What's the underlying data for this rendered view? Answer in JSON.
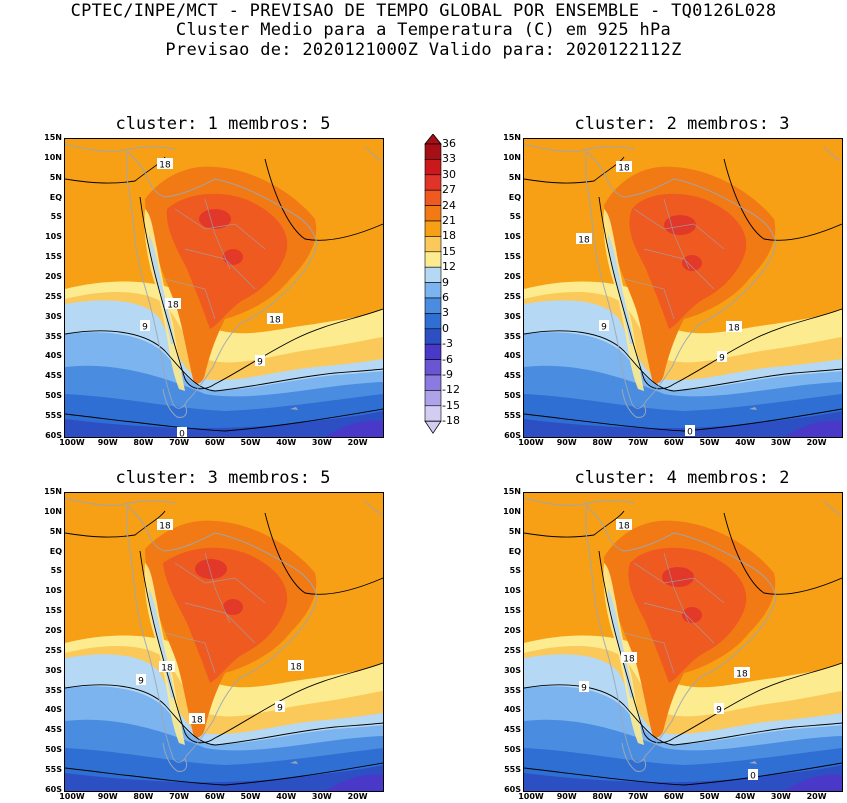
{
  "header": {
    "line1": "CPTEC/INPE/MCT - PREVISAO DE TEMPO GLOBAL POR ENSEMBLE - TQ0126L028",
    "line2": "Cluster Medio para a Temperatura (C) em 925 hPa",
    "line3": "Previsao de: 2020121000Z   Valido para: 2020122112Z"
  },
  "panels": [
    {
      "title": "cluster: 1  membros: 5"
    },
    {
      "title": "cluster: 2  membros: 3"
    },
    {
      "title": "cluster: 3  membros: 5"
    },
    {
      "title": "cluster: 4  membros: 2"
    }
  ],
  "axes": {
    "lat_labels": [
      "15N",
      "10N",
      "5N",
      "EQ",
      "5S",
      "10S",
      "15S",
      "20S",
      "25S",
      "30S",
      "35S",
      "40S",
      "45S",
      "50S",
      "55S",
      "60S"
    ],
    "lon_labels": [
      "100W",
      "90W",
      "80W",
      "70W",
      "60W",
      "50W",
      "40W",
      "30W",
      "20W"
    ]
  },
  "contour_labels": {
    "p1": [
      "18",
      "18",
      "18",
      "9",
      "9",
      "0"
    ],
    "p2": [
      "18",
      "18",
      "18",
      "9",
      "9",
      "0"
    ],
    "p3": [
      "18",
      "18",
      "18",
      "18",
      "9",
      "9"
    ],
    "p4": [
      "18",
      "18",
      "18",
      "9",
      "9",
      "0"
    ]
  },
  "colorbar": {
    "labels": [
      "36",
      "33",
      "30",
      "27",
      "24",
      "21",
      "18",
      "15",
      "12",
      "9",
      "6",
      "3",
      "0",
      "-3",
      "-6",
      "-9",
      "-12",
      "-15",
      "-18"
    ],
    "colors": [
      "#a50f15",
      "#cb181d",
      "#e0342a",
      "#ef5a20",
      "#f27a14",
      "#f7a015",
      "#fbc95a",
      "#fdeb8f",
      "#b5d8f5",
      "#7cb4ef",
      "#4a8de0",
      "#2f6ed3",
      "#2c4fc4",
      "#4a38c9",
      "#6a55d3",
      "#8b7be0",
      "#aea3ea",
      "#d3cdf4"
    ]
  },
  "colors": {
    "ocean_warm": "#f7a015",
    "land_hot": "#ef5a20",
    "cold_ocean": "#2f6ed3"
  }
}
